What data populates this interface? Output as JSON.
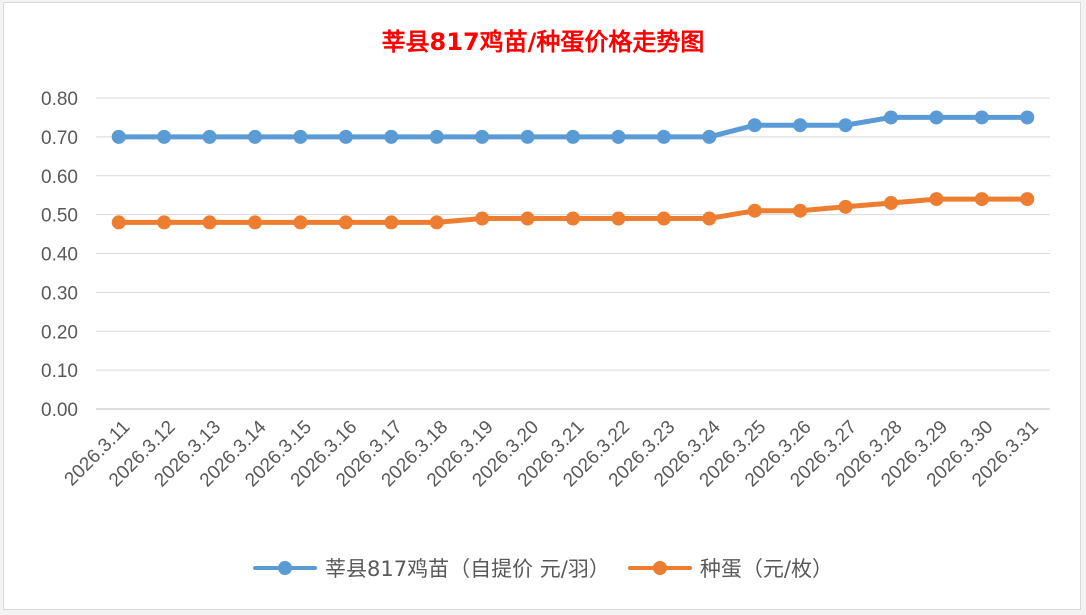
{
  "chart_data": {
    "type": "line",
    "title": "莘县817鸡苗/种蛋价格走势图",
    "xlabel": "",
    "ylabel": "",
    "ylim": [
      0,
      0.8
    ],
    "y_ticks": [
      "0.00",
      "0.10",
      "0.20",
      "0.30",
      "0.40",
      "0.50",
      "0.60",
      "0.70",
      "0.80"
    ],
    "grid": true,
    "legend_position": "bottom",
    "categories": [
      "2026.3.11",
      "2026.3.12",
      "2026.3.13",
      "2026.3.14",
      "2026.3.15",
      "2026.3.16",
      "2026.3.17",
      "2026.3.18",
      "2026.3.19",
      "2026.3.20",
      "2026.3.21",
      "2026.3.22",
      "2026.3.23",
      "2026.3.24",
      "2026.3.25",
      "2026.3.26",
      "2026.3.27",
      "2026.3.28",
      "2026.3.29",
      "2026.3.30",
      "2026.3.31"
    ],
    "series": [
      {
        "name": "莘县817鸡苗（自提价 元/羽）",
        "color": "#5b9bd5",
        "values": [
          0.7,
          0.7,
          0.7,
          0.7,
          0.7,
          0.7,
          0.7,
          0.7,
          0.7,
          0.7,
          0.7,
          0.7,
          0.7,
          0.7,
          0.73,
          0.73,
          0.73,
          0.75,
          0.75,
          0.75,
          0.75
        ]
      },
      {
        "name": "种蛋（元/枚）",
        "color": "#ed7d31",
        "values": [
          0.48,
          0.48,
          0.48,
          0.48,
          0.48,
          0.48,
          0.48,
          0.48,
          0.49,
          0.49,
          0.49,
          0.49,
          0.49,
          0.49,
          0.51,
          0.51,
          0.52,
          0.53,
          0.54,
          0.54,
          0.54
        ]
      }
    ]
  }
}
